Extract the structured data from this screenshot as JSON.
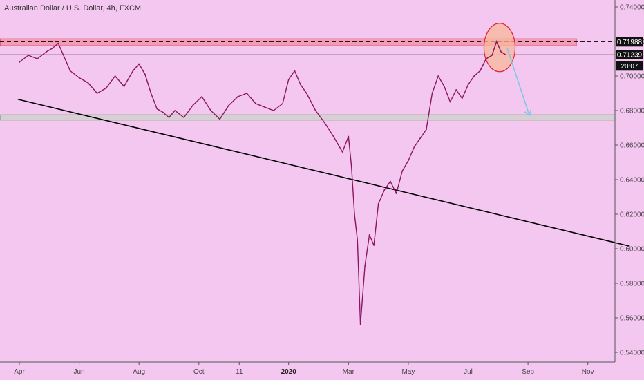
{
  "title": "Australian Dollar / U.S. Dollar, 4h, FXCM",
  "colors": {
    "background": "#f4c7f0",
    "price_line": "#8a1560",
    "resistance_zone_fill": "#f08a9a",
    "resistance_zone_stroke": "#e0203a",
    "support_zone_fill": "#d4cfcf",
    "support_zone_stroke": "#4ca64c",
    "trendline": "#000000",
    "highlight_circle_fill": "#f7b89a",
    "highlight_circle_stroke": "#e0203a",
    "projection_arrow": "#7fc6e8",
    "price_tag_bg": "#111111",
    "axis_text": "#444444"
  },
  "price_tags": {
    "resistance": "0.71988",
    "current": "0.71239",
    "countdown": "20:07"
  },
  "chart_data": {
    "type": "line",
    "title": "Australian Dollar / U.S. Dollar, 4h, FXCM",
    "x_axis": {
      "tick_labels": [
        {
          "label": "Apr",
          "bold": false
        },
        {
          "label": "Jun",
          "bold": false
        },
        {
          "label": "Aug",
          "bold": false
        },
        {
          "label": "Oct",
          "bold": false
        },
        {
          "label": "11",
          "bold": false
        },
        {
          "label": "2020",
          "bold": true
        },
        {
          "label": "Mar",
          "bold": false
        },
        {
          "label": "May",
          "bold": false
        },
        {
          "label": "Jul",
          "bold": false
        },
        {
          "label": "Sep",
          "bold": false
        },
        {
          "label": "Nov",
          "bold": false
        }
      ],
      "tick_month_index": [
        0,
        2,
        4,
        6,
        7.35,
        9,
        11,
        13,
        15,
        17,
        19
      ]
    },
    "y_axis": {
      "range": [
        0.535,
        0.745
      ],
      "ticks": [
        "0.74000",
        "0.72000",
        "0.70000",
        "0.68000",
        "0.66000",
        "0.64000",
        "0.62000",
        "0.60000",
        "0.58000",
        "0.56000",
        "0.54000"
      ],
      "position": "right"
    },
    "series": [
      {
        "points": [
          [
            0.0,
            0.708
          ],
          [
            0.3,
            0.712
          ],
          [
            0.6,
            0.71
          ],
          [
            0.9,
            0.714
          ],
          [
            1.1,
            0.716
          ],
          [
            1.3,
            0.719
          ],
          [
            1.5,
            0.711
          ],
          [
            1.7,
            0.703
          ],
          [
            2.0,
            0.699
          ],
          [
            2.3,
            0.696
          ],
          [
            2.6,
            0.69
          ],
          [
            2.9,
            0.693
          ],
          [
            3.2,
            0.7
          ],
          [
            3.5,
            0.694
          ],
          [
            3.8,
            0.703
          ],
          [
            4.0,
            0.707
          ],
          [
            4.2,
            0.701
          ],
          [
            4.4,
            0.69
          ],
          [
            4.6,
            0.681
          ],
          [
            4.8,
            0.679
          ],
          [
            5.0,
            0.676
          ],
          [
            5.2,
            0.68
          ],
          [
            5.5,
            0.676
          ],
          [
            5.8,
            0.683
          ],
          [
            6.1,
            0.688
          ],
          [
            6.4,
            0.68
          ],
          [
            6.7,
            0.675
          ],
          [
            7.0,
            0.683
          ],
          [
            7.3,
            0.688
          ],
          [
            7.6,
            0.69
          ],
          [
            7.9,
            0.684
          ],
          [
            8.2,
            0.682
          ],
          [
            8.5,
            0.68
          ],
          [
            8.8,
            0.684
          ],
          [
            9.0,
            0.698
          ],
          [
            9.2,
            0.703
          ],
          [
            9.4,
            0.695
          ],
          [
            9.6,
            0.69
          ],
          [
            9.9,
            0.68
          ],
          [
            10.2,
            0.673
          ],
          [
            10.5,
            0.665
          ],
          [
            10.8,
            0.656
          ],
          [
            11.0,
            0.665
          ],
          [
            11.1,
            0.648
          ],
          [
            11.2,
            0.62
          ],
          [
            11.3,
            0.605
          ],
          [
            11.4,
            0.556
          ],
          [
            11.55,
            0.59
          ],
          [
            11.7,
            0.608
          ],
          [
            11.85,
            0.602
          ],
          [
            12.0,
            0.626
          ],
          [
            12.2,
            0.634
          ],
          [
            12.4,
            0.639
          ],
          [
            12.6,
            0.632
          ],
          [
            12.8,
            0.645
          ],
          [
            13.0,
            0.651
          ],
          [
            13.2,
            0.659
          ],
          [
            13.4,
            0.664
          ],
          [
            13.6,
            0.669
          ],
          [
            13.8,
            0.69
          ],
          [
            14.0,
            0.7
          ],
          [
            14.2,
            0.694
          ],
          [
            14.4,
            0.685
          ],
          [
            14.6,
            0.692
          ],
          [
            14.8,
            0.687
          ],
          [
            15.0,
            0.695
          ],
          [
            15.2,
            0.7
          ],
          [
            15.4,
            0.703
          ],
          [
            15.6,
            0.71
          ],
          [
            15.8,
            0.712
          ],
          [
            15.95,
            0.72
          ],
          [
            16.1,
            0.714
          ],
          [
            16.25,
            0.7124
          ]
        ]
      }
    ],
    "resistance_zone": [
      0.7175,
      0.7215
    ],
    "resistance_level": 0.71988,
    "current_price": 0.71239,
    "support_zone": [
      0.6745,
      0.6775
    ],
    "trendline": {
      "start": [
        -0.05,
        0.6865
      ],
      "end": [
        20.4,
        0.6015
      ]
    },
    "highlight": {
      "center": [
        16.05,
        0.7165
      ],
      "radius_x_months": 0.52,
      "radius_y_price": 0.014
    },
    "projection": {
      "from": [
        16.3,
        0.7164
      ],
      "to": [
        17.05,
        0.677
      ]
    },
    "grid": false,
    "legend": "none"
  }
}
